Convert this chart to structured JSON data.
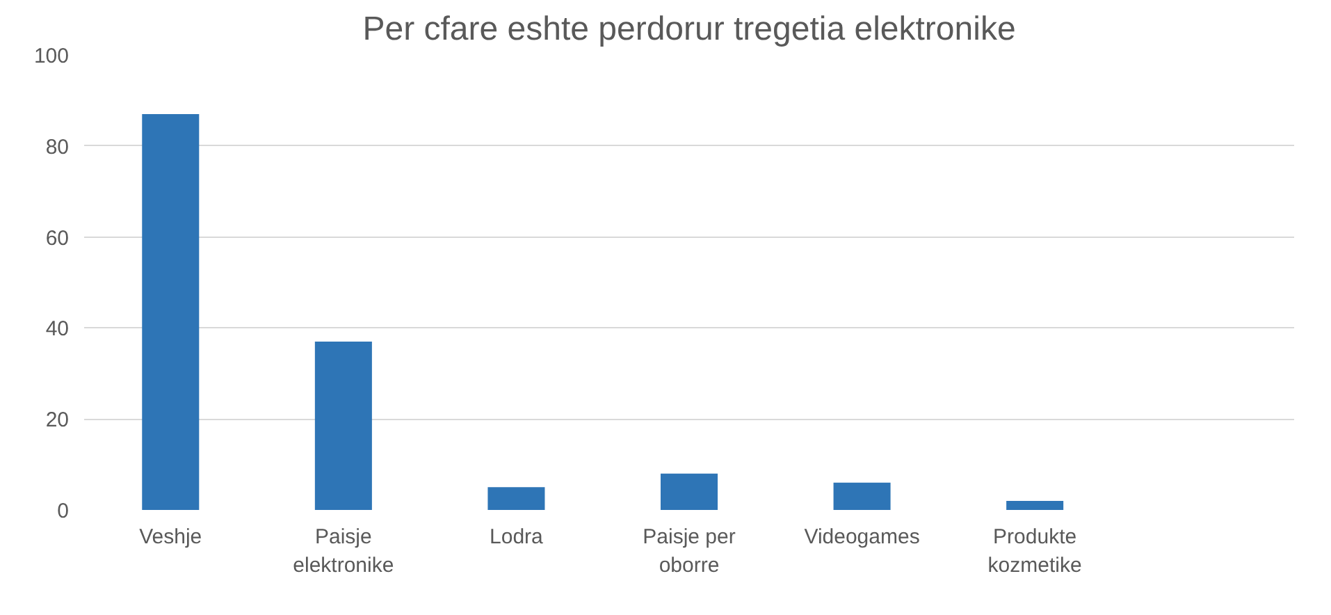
{
  "chart_data": {
    "type": "bar",
    "title": "Per cfare eshte perdorur tregetia elektronike",
    "categories": [
      "Veshje",
      "Paisje elektronike",
      "Lodra",
      "Paisje per oborre",
      "Videogames",
      "Produkte kozmetike",
      null
    ],
    "values": [
      87,
      37,
      5,
      8,
      6,
      2,
      null
    ],
    "color": "#2e75b6",
    "ylim": [
      0,
      100
    ],
    "yticks": [
      0,
      20,
      40,
      60,
      80,
      100
    ],
    "grid": "y"
  }
}
